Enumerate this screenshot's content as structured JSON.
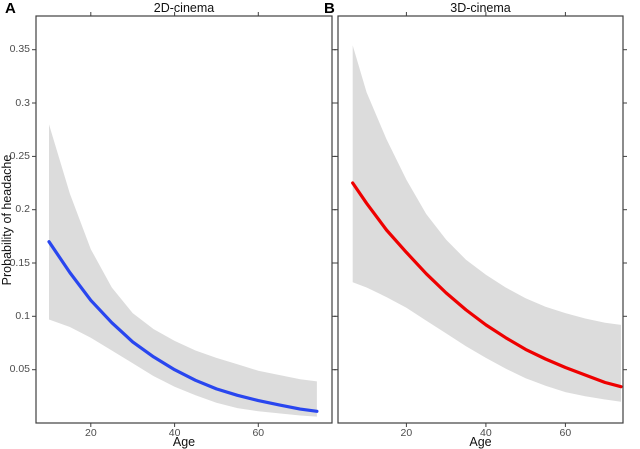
{
  "chart_data": [
    {
      "type": "line",
      "panel_label": "A",
      "title": "2D-cinema",
      "xlabel": "Age",
      "ylabel": "Probability of headache",
      "xlim": [
        6.9,
        77.6
      ],
      "ylim": [
        0,
        0.3816
      ],
      "grid": false,
      "legend": null,
      "x_ticks": {
        "values": [
          20,
          40,
          60
        ],
        "labels": [
          "20",
          "40",
          "60"
        ]
      },
      "y_ticks": {
        "values": [
          0.35,
          0.3,
          0.25,
          0.2,
          0.15,
          0.1,
          0.05
        ],
        "labels": [
          "0.35",
          "0.3",
          "0.25",
          "0.2",
          "0.15",
          "0.1",
          "0.05"
        ],
        "show_labels": true
      },
      "series": [
        {
          "name": "predicted-probability-2d",
          "color": "#2946ef",
          "x": [
            10,
            15,
            20,
            25,
            30,
            35,
            40,
            45,
            50,
            55,
            60,
            65,
            70,
            74
          ],
          "y": [
            0.17,
            0.141,
            0.115,
            0.094,
            0.076,
            0.062,
            0.05,
            0.04,
            0.032,
            0.026,
            0.021,
            0.017,
            0.013,
            0.011
          ]
        }
      ],
      "band": {
        "name": "confidence-band-2d",
        "color": "#dcdcdc",
        "x": [
          10,
          15,
          20,
          25,
          30,
          35,
          40,
          45,
          50,
          55,
          60,
          65,
          70,
          74
        ],
        "upper": [
          0.28,
          0.215,
          0.163,
          0.127,
          0.103,
          0.088,
          0.077,
          0.068,
          0.061,
          0.055,
          0.049,
          0.045,
          0.041,
          0.039
        ],
        "lower": [
          0.097,
          0.09,
          0.08,
          0.068,
          0.056,
          0.044,
          0.034,
          0.026,
          0.019,
          0.014,
          0.011,
          0.009,
          0.007,
          0.006
        ]
      }
    },
    {
      "type": "line",
      "panel_label": "B",
      "title": "3D-cinema",
      "xlabel": "Age",
      "xlim": [
        2.8,
        74.5
      ],
      "ylim": [
        0,
        0.3816
      ],
      "grid": false,
      "legend": null,
      "x_ticks": {
        "values": [
          20,
          40,
          60
        ],
        "labels": [
          "20",
          "40",
          "60"
        ]
      },
      "y_ticks": {
        "values": [
          0.35,
          0.3,
          0.25,
          0.2,
          0.15,
          0.1,
          0.05
        ],
        "show_labels": false
      },
      "series": [
        {
          "name": "predicted-probability-3d",
          "color": "#ee0000",
          "x": [
            6.5,
            10,
            15,
            20,
            25,
            30,
            35,
            40,
            45,
            50,
            55,
            60,
            65,
            70,
            74
          ],
          "y": [
            0.225,
            0.206,
            0.181,
            0.16,
            0.14,
            0.122,
            0.106,
            0.092,
            0.08,
            0.069,
            0.06,
            0.052,
            0.045,
            0.038,
            0.034
          ]
        }
      ],
      "band": {
        "name": "confidence-band-3d",
        "color": "#dcdcdc",
        "x": [
          6.5,
          10,
          15,
          20,
          25,
          30,
          35,
          40,
          45,
          50,
          55,
          60,
          65,
          70,
          74
        ],
        "upper": [
          0.354,
          0.31,
          0.266,
          0.228,
          0.196,
          0.172,
          0.153,
          0.139,
          0.127,
          0.117,
          0.109,
          0.103,
          0.098,
          0.094,
          0.092
        ],
        "lower": [
          0.132,
          0.127,
          0.118,
          0.108,
          0.096,
          0.084,
          0.072,
          0.061,
          0.051,
          0.042,
          0.035,
          0.029,
          0.025,
          0.022,
          0.02
        ]
      }
    }
  ]
}
